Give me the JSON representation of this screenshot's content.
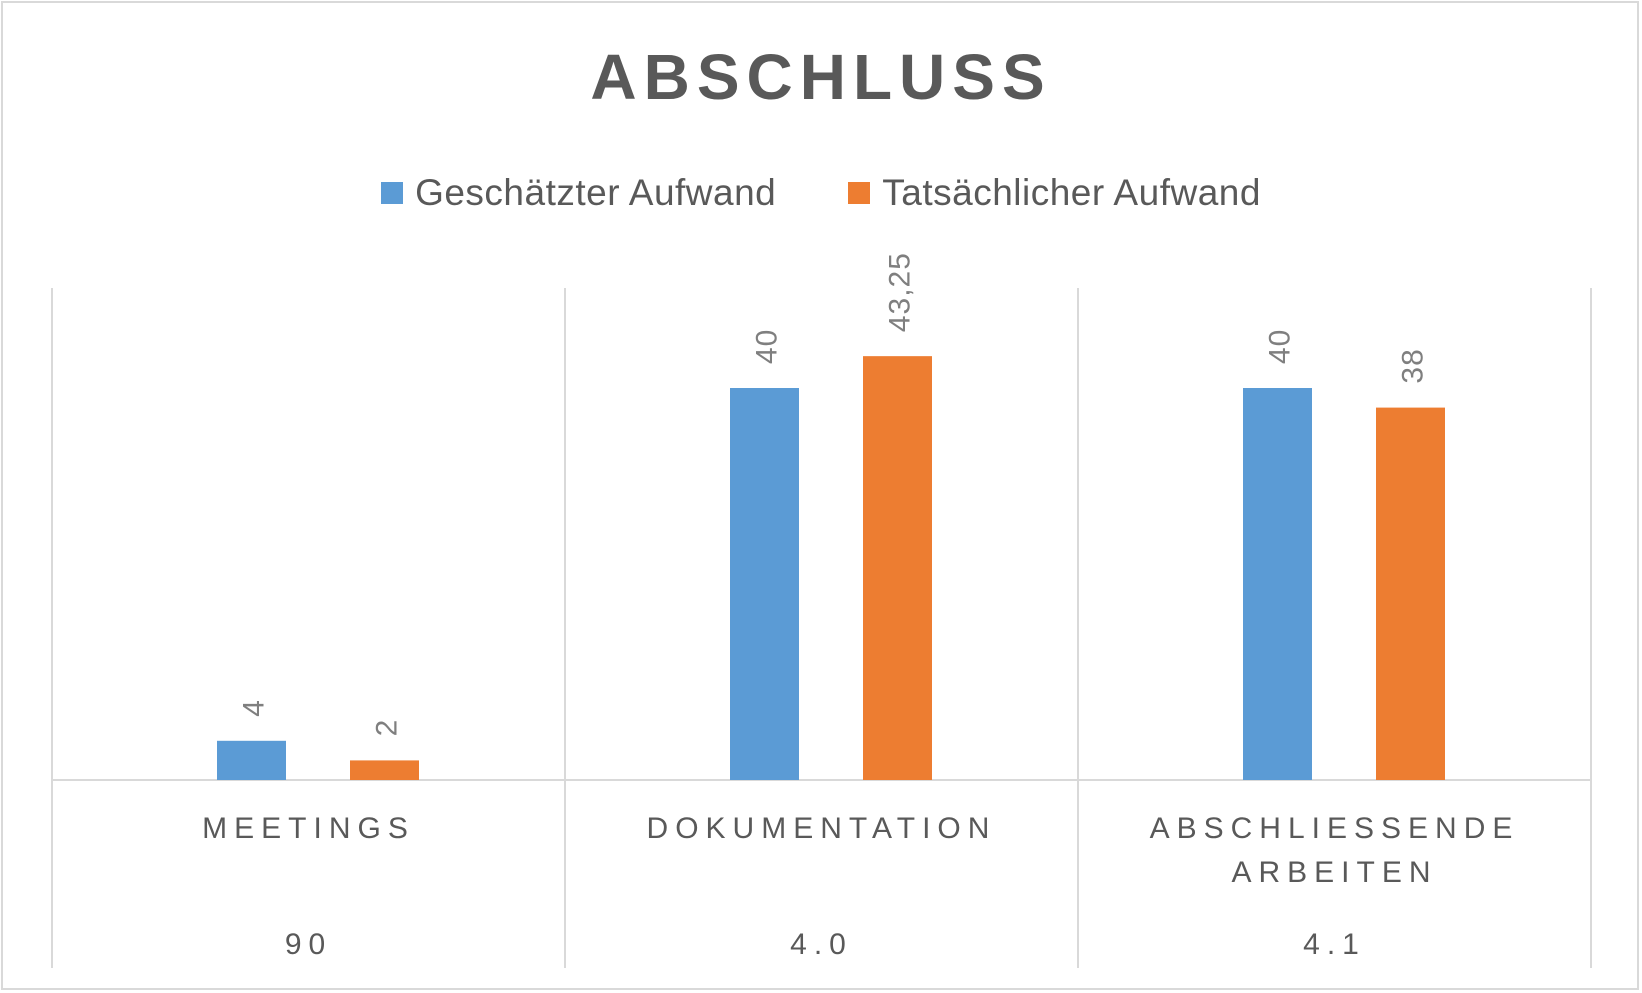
{
  "chart_data": {
    "type": "bar",
    "title": "ABSCHLUSS",
    "categories": [
      "MEETINGS",
      "DOKUMENTATION",
      "ABSCHLIESSENDE ARBEITEN"
    ],
    "category_lines": [
      [
        "MEETINGS"
      ],
      [
        "DOKUMENTATION"
      ],
      [
        "ABSCHLIESSENDE",
        "ARBEITEN"
      ]
    ],
    "category_codes": [
      "90",
      "4.0",
      "4.1"
    ],
    "series": [
      {
        "name": "Geschätzter Aufwand",
        "color": "#5b9bd5",
        "values": [
          4,
          40,
          40
        ],
        "labels": [
          "4",
          "40",
          "40"
        ]
      },
      {
        "name": "Tatsächlicher Aufwand",
        "color": "#ed7d31",
        "values": [
          2,
          43.25,
          38
        ],
        "labels": [
          "2",
          "43,25",
          "38"
        ]
      }
    ],
    "ylim": [
      0,
      50
    ],
    "grid": false,
    "legend_position": "top",
    "xlabel": "",
    "ylabel": ""
  }
}
